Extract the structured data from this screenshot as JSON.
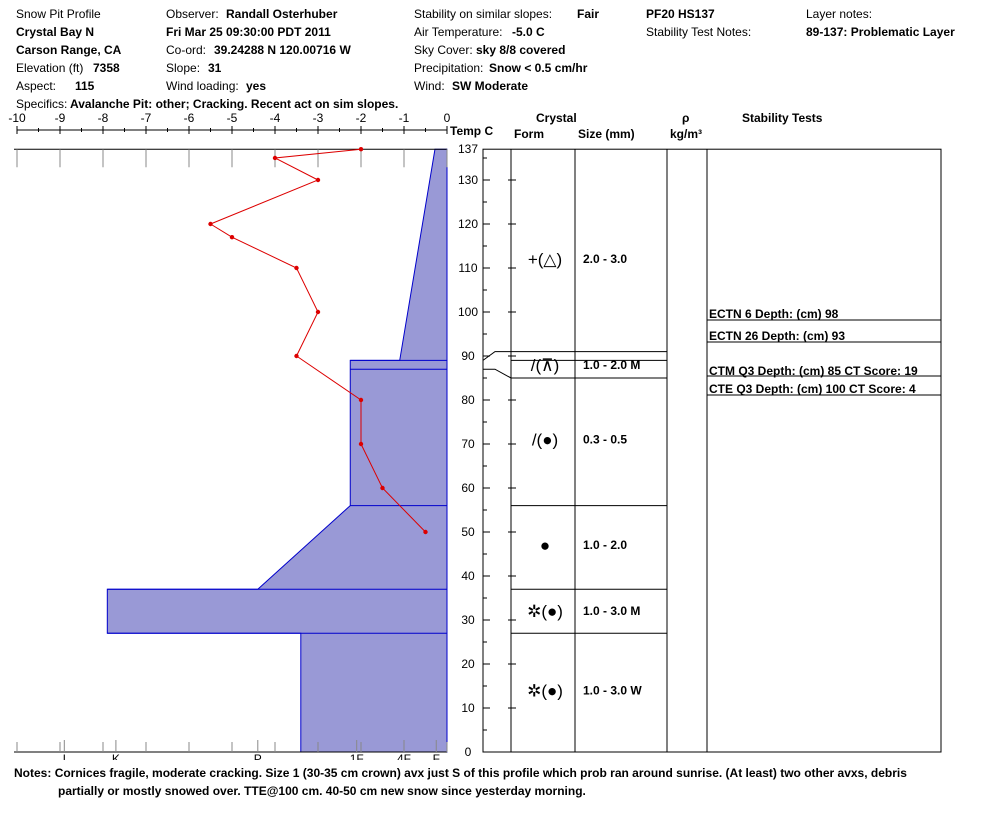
{
  "header": {
    "profile_label": "Snow Pit Profile",
    "location": "Crystal Bay N",
    "region": "Carson Range, CA",
    "elevation_label": "Elevation (ft)",
    "elevation": "7358",
    "aspect_label": "Aspect:",
    "aspect": "115",
    "specifics_label": "Specifics:",
    "specifics": "Avalanche Pit: other; Cracking. Recent act on sim slopes.",
    "observer_label": "Observer:",
    "observer": "Randall Osterhuber",
    "datetime": "Fri Mar 25 09:30:00 PDT 2011",
    "coord_label": "Co-ord:",
    "coord": "39.24288 N 120.00716 W",
    "slope_label": "Slope:",
    "slope": "31",
    "wind_loading_label": "Wind loading:",
    "wind_loading": "yes",
    "stability_label": "Stability on similar slopes:",
    "stability": "Fair",
    "air_temp_label": "Air Temperature:",
    "air_temp": "-5.0 C",
    "sky_label": "Sky Cover:",
    "sky": "sky 8/8 covered",
    "precip_label": "Precipitation:",
    "precip": "Snow < 0.5 cm/hr",
    "wind_label": "Wind:",
    "wind": "SW Moderate",
    "pit_code": "PF20 HS137",
    "stability_notes_label": "Stability Test Notes:",
    "layer_notes_label": "Layer notes:",
    "layer_notes": "89-137: Problematic Layer"
  },
  "columns": {
    "temp": "Temp C",
    "crystal": "Crystal",
    "form": "Form",
    "size": "Size (mm)",
    "rho": "ρ",
    "density_unit": "kg/m³",
    "stability_tests": "Stability Tests"
  },
  "chart_data": {
    "type": "line",
    "temp_axis": {
      "range": [
        -10,
        0
      ],
      "ticks": [
        "-10",
        "-9",
        "-8",
        "-7",
        "-6",
        "-5",
        "-4",
        "-3",
        "-2",
        "-1",
        "0"
      ]
    },
    "height_axis": {
      "range": [
        0,
        137
      ],
      "ticks": [
        "0",
        "10",
        "20",
        "30",
        "40",
        "50",
        "60",
        "70",
        "80",
        "90",
        "100",
        "110",
        "120",
        "130",
        "137"
      ]
    },
    "hardness_ticks": [
      "I",
      "K",
      "P",
      "1F",
      "4F",
      "F"
    ],
    "temperature_profile": [
      {
        "t": -2.0,
        "h": 137
      },
      {
        "t": -4.0,
        "h": 135
      },
      {
        "t": -3.0,
        "h": 130
      },
      {
        "t": -5.5,
        "h": 120
      },
      {
        "t": -5.0,
        "h": 117
      },
      {
        "t": -3.5,
        "h": 110
      },
      {
        "t": -3.0,
        "h": 100
      },
      {
        "t": -3.5,
        "h": 90
      },
      {
        "t": -2.0,
        "h": 80
      },
      {
        "t": -2.0,
        "h": 70
      },
      {
        "t": -1.5,
        "h": 60
      },
      {
        "t": -0.5,
        "h": 50
      }
    ],
    "hardness_profile": [
      {
        "h": 137,
        "w": 0.28
      },
      {
        "h": 89,
        "w": 1.1
      },
      {
        "h": 89,
        "w": 2.25
      },
      {
        "h": 87,
        "w": 2.25
      },
      {
        "h": 56,
        "w": 2.25
      },
      {
        "h": 37,
        "w": 4.4
      },
      {
        "h": 37,
        "w": 7.9
      },
      {
        "h": 27,
        "w": 7.9
      },
      {
        "h": 27,
        "w": 3.4
      },
      {
        "h": 0,
        "w": 3.4
      }
    ],
    "layer_boundaries": [
      91,
      89,
      85,
      56,
      37,
      27
    ],
    "layers": [
      {
        "form": "+(△)",
        "size": "2.0 - 3.0",
        "h": 112
      },
      {
        "form": "/(⊼)",
        "size": "1.0 - 2.0 M",
        "h": 88
      },
      {
        "form": "/(●)",
        "size": "0.3 - 0.5",
        "h": 71
      },
      {
        "form": "●",
        "size": "1.0 - 2.0",
        "h": 47
      },
      {
        "form": "✲(●)",
        "size": "1.0 - 3.0 M",
        "h": 32
      },
      {
        "form": "✲(●)",
        "size": "1.0 - 3.0 W",
        "h": 14
      }
    ],
    "stability_tests": [
      {
        "text": "ECTN 6   Depth: (cm) 98"
      },
      {
        "text": "ECTN 26   Depth: (cm) 93"
      },
      {
        "text": "CTM Q3 Depth: (cm) 85 CT Score: 19"
      },
      {
        "text": "CTE Q3 Depth: (cm) 100 CT Score: 4"
      }
    ]
  },
  "notes_label": "Notes:",
  "notes_line1": "Cornices fragile, moderate cracking.  Size 1 (30-35 cm crown) avx just S of this profile which prob ran around sunrise.  (At least) two other avxs, debris",
  "notes_line2": "partially or mostly snowed over. TTE@100 cm. 40-50 cm new snow since yesterday morning.",
  "colors": {
    "hardness_fill": "#9999d6",
    "hardness_stroke": "#0000cc",
    "temperature": "#dd0000"
  }
}
